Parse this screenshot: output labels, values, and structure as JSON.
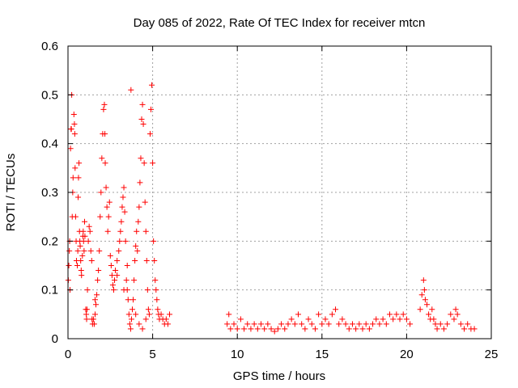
{
  "chart_data": {
    "type": "scatter",
    "title": "Day 085 of 2022, Rate Of TEC Index for receiver mtcn",
    "xlabel": "GPS time / hours",
    "ylabel": "ROTI / TECUs",
    "xlim": [
      0,
      25
    ],
    "ylim": [
      0,
      0.6
    ],
    "x_ticks": [
      "0",
      "5",
      "10",
      "15",
      "20",
      "25"
    ],
    "y_ticks": [
      "0",
      "0.1",
      "0.2",
      "0.3",
      "0.4",
      "0.5",
      "0.6"
    ],
    "grid": true,
    "marker": "plus",
    "color": "#ff0000",
    "series": [
      {
        "points": [
          [
            0.02,
            0.12
          ],
          [
            0.05,
            0.15
          ],
          [
            0.08,
            0.18
          ],
          [
            0.1,
            0.2
          ],
          [
            0.12,
            0.1
          ],
          [
            0.15,
            0.39
          ],
          [
            0.18,
            0.43
          ],
          [
            0.2,
            0.43
          ],
          [
            0.22,
            0.5
          ],
          [
            0.25,
            0.25
          ],
          [
            0.28,
            0.3
          ],
          [
            0.3,
            0.33
          ],
          [
            0.35,
            0.46
          ],
          [
            0.38,
            0.44
          ],
          [
            0.4,
            0.42
          ],
          [
            0.42,
            0.35
          ],
          [
            0.45,
            0.25
          ],
          [
            0.48,
            0.2
          ],
          [
            0.5,
            0.16
          ],
          [
            0.55,
            0.15
          ],
          [
            0.58,
            0.18
          ],
          [
            0.6,
            0.29
          ],
          [
            0.62,
            0.33
          ],
          [
            0.65,
            0.36
          ],
          [
            0.68,
            0.22
          ],
          [
            0.7,
            0.2
          ],
          [
            0.72,
            0.19
          ],
          [
            0.75,
            0.16
          ],
          [
            0.78,
            0.14
          ],
          [
            0.8,
            0.13
          ],
          [
            0.85,
            0.17
          ],
          [
            0.88,
            0.21
          ],
          [
            0.9,
            0.22
          ],
          [
            0.92,
            0.2
          ],
          [
            0.95,
            0.18
          ],
          [
            0.98,
            0.24
          ],
          [
            1.0,
            0.21
          ],
          [
            1.05,
            0.06
          ],
          [
            1.08,
            0.05
          ],
          [
            1.1,
            0.04
          ],
          [
            1.12,
            0.06
          ],
          [
            1.15,
            0.1
          ],
          [
            1.2,
            0.2
          ],
          [
            1.25,
            0.23
          ],
          [
            1.3,
            0.22
          ],
          [
            1.35,
            0.18
          ],
          [
            1.4,
            0.16
          ],
          [
            1.42,
            0.04
          ],
          [
            1.45,
            0.03
          ],
          [
            1.5,
            0.04
          ],
          [
            1.55,
            0.03
          ],
          [
            1.6,
            0.05
          ],
          [
            1.65,
            0.07
          ],
          [
            1.7,
            0.09
          ],
          [
            1.75,
            0.12
          ],
          [
            1.8,
            0.14
          ],
          [
            1.85,
            0.18
          ],
          [
            1.9,
            0.25
          ],
          [
            1.95,
            0.3
          ],
          [
            2.0,
            0.37
          ],
          [
            2.05,
            0.42
          ],
          [
            2.1,
            0.47
          ],
          [
            2.15,
            0.48
          ],
          [
            2.18,
            0.42
          ],
          [
            2.2,
            0.36
          ],
          [
            2.25,
            0.31
          ],
          [
            2.3,
            0.27
          ],
          [
            2.35,
            0.22
          ],
          [
            2.4,
            0.25
          ],
          [
            2.45,
            0.28
          ],
          [
            2.5,
            0.17
          ],
          [
            2.55,
            0.15
          ],
          [
            2.6,
            0.13
          ],
          [
            2.65,
            0.11
          ],
          [
            2.7,
            0.1
          ],
          [
            2.75,
            0.12
          ],
          [
            2.8,
            0.14
          ],
          [
            2.9,
            0.16
          ],
          [
            3.0,
            0.18
          ],
          [
            3.05,
            0.2
          ],
          [
            3.1,
            0.22
          ],
          [
            3.15,
            0.24
          ],
          [
            3.2,
            0.27
          ],
          [
            3.25,
            0.29
          ],
          [
            3.3,
            0.31
          ],
          [
            3.35,
            0.26
          ],
          [
            3.4,
            0.2
          ],
          [
            3.45,
            0.12
          ],
          [
            3.5,
            0.1
          ],
          [
            3.55,
            0.08
          ],
          [
            3.6,
            0.05
          ],
          [
            3.65,
            0.03
          ],
          [
            3.7,
            0.02
          ],
          [
            3.72,
            0.51
          ],
          [
            3.75,
            0.04
          ],
          [
            3.8,
            0.06
          ],
          [
            3.85,
            0.08
          ],
          [
            3.9,
            0.12
          ],
          [
            3.95,
            0.16
          ],
          [
            4.0,
            0.19
          ],
          [
            4.05,
            0.22
          ],
          [
            4.1,
            0.18
          ],
          [
            4.15,
            0.24
          ],
          [
            4.2,
            0.27
          ],
          [
            4.25,
            0.32
          ],
          [
            4.3,
            0.37
          ],
          [
            4.35,
            0.45
          ],
          [
            4.4,
            0.48
          ],
          [
            4.45,
            0.44
          ],
          [
            4.5,
            0.36
          ],
          [
            4.55,
            0.28
          ],
          [
            4.6,
            0.22
          ],
          [
            4.65,
            0.16
          ],
          [
            4.7,
            0.1
          ],
          [
            4.75,
            0.06
          ],
          [
            4.8,
            0.05
          ],
          [
            4.85,
            0.42
          ],
          [
            4.9,
            0.47
          ],
          [
            4.95,
            0.52
          ],
          [
            5.0,
            0.36
          ],
          [
            5.05,
            0.2
          ],
          [
            5.1,
            0.16
          ],
          [
            5.15,
            0.12
          ],
          [
            5.2,
            0.1
          ],
          [
            5.25,
            0.08
          ],
          [
            5.3,
            0.06
          ],
          [
            5.35,
            0.05
          ],
          [
            5.4,
            0.04
          ],
          [
            5.5,
            0.05
          ],
          [
            5.6,
            0.04
          ],
          [
            5.7,
            0.03
          ],
          [
            5.8,
            0.04
          ],
          [
            5.9,
            0.03
          ],
          [
            6.0,
            0.05
          ],
          [
            4.0,
            0.05
          ],
          [
            4.2,
            0.03
          ],
          [
            4.4,
            0.02
          ],
          [
            4.6,
            0.04
          ],
          [
            3.3,
            0.1
          ],
          [
            3.5,
            0.15
          ],
          [
            2.9,
            0.13
          ],
          [
            1.6,
            0.08
          ],
          [
            9.4,
            0.03
          ],
          [
            9.5,
            0.05
          ],
          [
            9.6,
            0.02
          ],
          [
            9.8,
            0.03
          ],
          [
            10.0,
            0.02
          ],
          [
            10.2,
            0.04
          ],
          [
            10.4,
            0.02
          ],
          [
            10.6,
            0.03
          ],
          [
            10.8,
            0.02
          ],
          [
            11.0,
            0.03
          ],
          [
            11.2,
            0.02
          ],
          [
            11.4,
            0.03
          ],
          [
            11.6,
            0.02
          ],
          [
            11.8,
            0.03
          ],
          [
            12.0,
            0.02
          ],
          [
            12.2,
            0.015
          ],
          [
            12.4,
            0.02
          ],
          [
            12.6,
            0.03
          ],
          [
            12.8,
            0.02
          ],
          [
            13.0,
            0.03
          ],
          [
            13.2,
            0.04
          ],
          [
            13.4,
            0.03
          ],
          [
            13.6,
            0.05
          ],
          [
            13.8,
            0.03
          ],
          [
            14.0,
            0.02
          ],
          [
            14.2,
            0.04
          ],
          [
            14.4,
            0.03
          ],
          [
            14.6,
            0.02
          ],
          [
            14.8,
            0.05
          ],
          [
            15.0,
            0.03
          ],
          [
            15.2,
            0.04
          ],
          [
            15.4,
            0.03
          ],
          [
            15.6,
            0.05
          ],
          [
            15.8,
            0.06
          ],
          [
            16.0,
            0.03
          ],
          [
            16.2,
            0.04
          ],
          [
            16.4,
            0.03
          ],
          [
            16.6,
            0.02
          ],
          [
            16.8,
            0.03
          ],
          [
            17.0,
            0.02
          ],
          [
            17.2,
            0.03
          ],
          [
            17.4,
            0.02
          ],
          [
            17.6,
            0.03
          ],
          [
            17.8,
            0.02
          ],
          [
            18.0,
            0.03
          ],
          [
            18.2,
            0.04
          ],
          [
            18.4,
            0.03
          ],
          [
            18.6,
            0.04
          ],
          [
            18.8,
            0.03
          ],
          [
            19.0,
            0.05
          ],
          [
            19.2,
            0.04
          ],
          [
            19.4,
            0.05
          ],
          [
            19.6,
            0.04
          ],
          [
            19.8,
            0.05
          ],
          [
            20.0,
            0.04
          ],
          [
            20.2,
            0.03
          ],
          [
            20.8,
            0.06
          ],
          [
            20.9,
            0.09
          ],
          [
            21.0,
            0.12
          ],
          [
            21.05,
            0.1
          ],
          [
            21.1,
            0.08
          ],
          [
            21.2,
            0.07
          ],
          [
            21.3,
            0.05
          ],
          [
            21.4,
            0.04
          ],
          [
            21.5,
            0.06
          ],
          [
            21.6,
            0.04
          ],
          [
            21.7,
            0.03
          ],
          [
            21.8,
            0.02
          ],
          [
            22.0,
            0.03
          ],
          [
            22.2,
            0.02
          ],
          [
            22.4,
            0.03
          ],
          [
            22.6,
            0.05
          ],
          [
            22.8,
            0.04
          ],
          [
            22.9,
            0.06
          ],
          [
            23.0,
            0.05
          ],
          [
            23.2,
            0.03
          ],
          [
            23.4,
            0.02
          ],
          [
            23.6,
            0.03
          ],
          [
            23.8,
            0.02
          ],
          [
            24.0,
            0.02
          ]
        ]
      }
    ]
  }
}
